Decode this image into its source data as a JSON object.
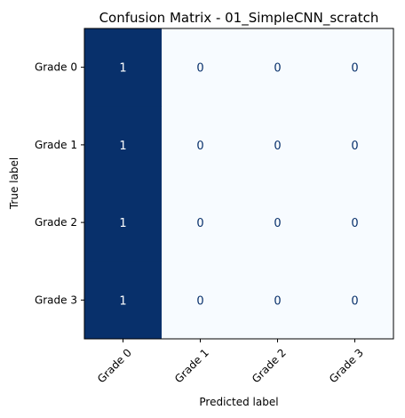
{
  "chart_data": {
    "type": "heatmap",
    "title": "Confusion Matrix - 01_SimpleCNN_scratch",
    "xlabel": "Predicted label",
    "ylabel": "True label",
    "x_categories": [
      "Grade 0",
      "Grade 1",
      "Grade 2",
      "Grade 3"
    ],
    "y_categories": [
      "Grade 0",
      "Grade 1",
      "Grade 2",
      "Grade 3"
    ],
    "values": [
      [
        1,
        0,
        0,
        0
      ],
      [
        1,
        0,
        0,
        0
      ],
      [
        1,
        0,
        0,
        0
      ],
      [
        1,
        0,
        0,
        0
      ]
    ],
    "value_range": [
      0,
      1
    ],
    "colormap": "Blues",
    "color_high": "#08306b",
    "color_low": "#f7fbff",
    "text_on_high": "#ffffff",
    "text_on_low": "#08306b"
  }
}
